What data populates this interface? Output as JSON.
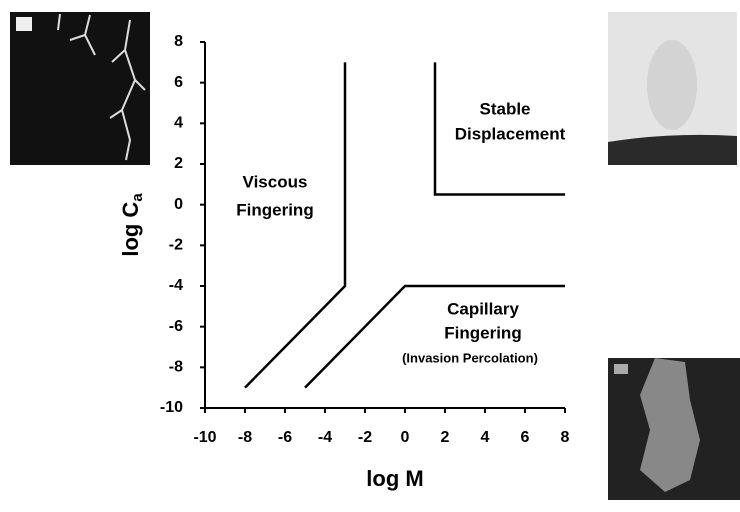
{
  "chart_data": {
    "type": "line",
    "x_label": "log M",
    "y_label": "log C",
    "y_label_subscript": "a",
    "xlim": [
      -10,
      8
    ],
    "ylim": [
      -10,
      8
    ],
    "xticks": [
      -10,
      -8,
      -6,
      -4,
      -2,
      0,
      2,
      4,
      6,
      8
    ],
    "yticks": [
      -10,
      -8,
      -6,
      -4,
      -2,
      0,
      2,
      4,
      6,
      8
    ],
    "series": [
      {
        "color": "#000000",
        "x": [
          -8,
          -4,
          -3,
          -3
        ],
        "values": [
          -9,
          -5,
          -4,
          7
        ]
      },
      {
        "color": "#000000",
        "x": [
          -5,
          -4,
          0,
          8
        ],
        "values": [
          -9,
          -8,
          -4,
          -4
        ]
      },
      {
        "color": "#000000",
        "x": [
          1.5,
          1.5,
          8
        ],
        "values": [
          7,
          0.5,
          0.5
        ]
      }
    ],
    "annotations": [
      "Viscous",
      "Fingering",
      "Stable",
      "Displacement",
      "Capillary",
      "Fingering",
      "(Invasion Percolation)"
    ]
  }
}
